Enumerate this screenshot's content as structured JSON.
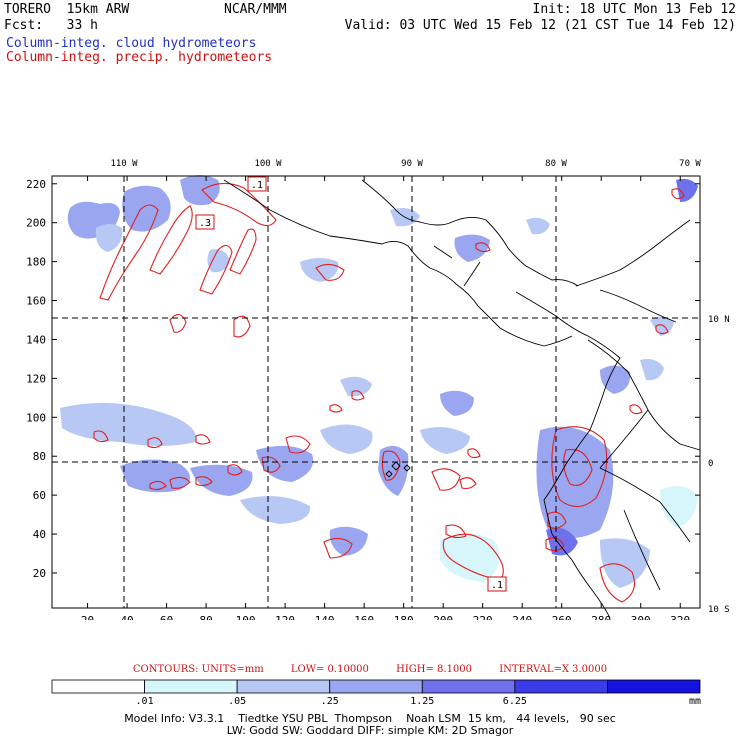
{
  "header": {
    "model": "TORERO  15km ARW",
    "org": "NCAR/MMM",
    "init": "Init: 18 UTC Mon 13 Feb 12",
    "fcst": "Fcst:   33 h",
    "valid": "Valid: 03 UTC Wed 15 Feb 12 (21 CST Tue 14 Feb 12)"
  },
  "legend": {
    "cloud": "Column-integ. cloud hydrometeors",
    "precip": "Column-integ. precip. hydrometeors"
  },
  "colors": {
    "cloud_text": "#2030c0",
    "precip_text": "#d01010"
  },
  "map": {
    "x_ticks": [
      "20",
      "40",
      "60",
      "80",
      "100",
      "120",
      "140",
      "160",
      "180",
      "200",
      "220",
      "240",
      "260",
      "280",
      "300",
      "320"
    ],
    "y_ticks": [
      "20",
      "40",
      "60",
      "80",
      "100",
      "120",
      "140",
      "160",
      "180",
      "200",
      "220"
    ],
    "lon_labels": [
      "110 W",
      "100 W",
      "90 W",
      "80 W",
      "70 W"
    ],
    "lat_labels": [
      "10 N",
      "0",
      "10 S"
    ],
    "box_labels": [
      ".1",
      ".3",
      ".1"
    ]
  },
  "contours": {
    "units": "CONTOURS:  UNITS=mm",
    "low": "LOW= 0.10000",
    "high": "HIGH=  8.1000",
    "interval": "INTERVAL=X  3.0000"
  },
  "colorbar": {
    "labels": [
      ".01",
      ".05",
      ".25",
      "1.25",
      "6.25"
    ],
    "unit": "mm",
    "colors": [
      "#ffffff",
      "#d6f6fb",
      "#b8c8f4",
      "#9aa6ef",
      "#6e70ec",
      "#3b3ae8",
      "#1512e0"
    ]
  },
  "footer": {
    "line1": "Model Info: V3.3.1    Tiedtke YSU PBL  Thompson    Noah LSM  15 km,   44 levels,   90 sec",
    "line2": "LW: Godd SW: Goddard DIFF: simple KM: 2D Smagor"
  }
}
